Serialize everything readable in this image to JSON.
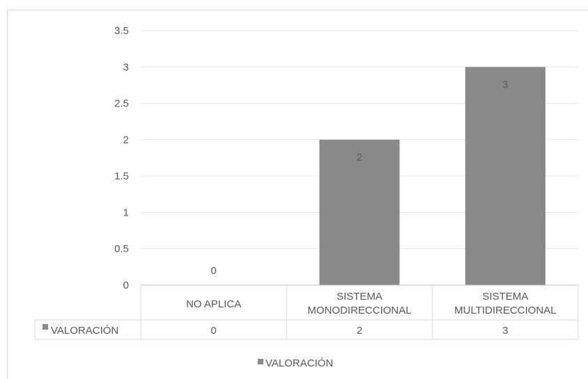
{
  "chart_data": {
    "type": "bar",
    "categories": [
      "NO APLICA",
      "SISTEMA MONODIRECCIONAL",
      "SISTEMA MULTIDIRECCIONAL"
    ],
    "category_label_lines": [
      [
        "NO APLICA"
      ],
      [
        "SISTEMA",
        "MONODIRECCIONAL"
      ],
      [
        "SISTEMA",
        "MULTIDIRECCIONAL"
      ]
    ],
    "series": [
      {
        "name": "VALORACIÓN",
        "values": [
          0,
          2,
          3
        ],
        "color": "#898989"
      }
    ],
    "data_labels": [
      "0",
      "2",
      "3"
    ],
    "ylim": [
      0,
      3.5
    ],
    "yticks": [
      "0",
      "0.5",
      "1",
      "1.5",
      "2",
      "2.5",
      "3",
      "3.5"
    ],
    "grid": true,
    "legend": "bottom",
    "data_table": true,
    "title": "",
    "xlabel": "",
    "ylabel": ""
  }
}
